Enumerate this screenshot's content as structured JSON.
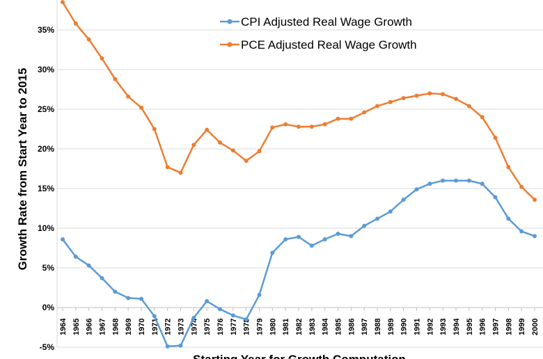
{
  "chart_data": {
    "type": "line",
    "title": "",
    "xlabel": "Starting Year for Growth Computation",
    "ylabel": "Growth Rate from Start Year to 2015",
    "ylim": [
      -5,
      38
    ],
    "y_ticks": [
      "-5%",
      "0%",
      "5%",
      "10%",
      "15%",
      "20%",
      "25%",
      "30%",
      "35%"
    ],
    "y_tick_values": [
      -5,
      0,
      5,
      10,
      15,
      20,
      25,
      30,
      35
    ],
    "grid": "horizontal",
    "legend_position": "top",
    "categories": [
      "1964",
      "1965",
      "1966",
      "1967",
      "1968",
      "1969",
      "1970",
      "1971",
      "1972",
      "1973",
      "1974",
      "1975",
      "1976",
      "1977",
      "1978",
      "1979",
      "1980",
      "1981",
      "1982",
      "1983",
      "1984",
      "1985",
      "1986",
      "1987",
      "1988",
      "1989",
      "1990",
      "1991",
      "1992",
      "1993",
      "1994",
      "1995",
      "1996",
      "1997",
      "1998",
      "1999",
      "2000"
    ],
    "series": [
      {
        "name": "CPI Adjusted Real Wage Growth",
        "color": "#5b9bd5",
        "values": [
          8.6,
          6.4,
          5.3,
          3.7,
          2.0,
          1.2,
          1.1,
          -1.1,
          -4.9,
          -4.8,
          -1.3,
          0.8,
          -0.2,
          -1.0,
          -1.5,
          1.6,
          6.9,
          8.6,
          8.9,
          7.8,
          8.6,
          9.3,
          9.0,
          10.3,
          11.2,
          12.1,
          13.6,
          14.9,
          15.6,
          16.0,
          16.0,
          16.0,
          15.6,
          13.9,
          11.2,
          9.6,
          9.0
        ]
      },
      {
        "name": "PCE Adjusted Real Wage Growth",
        "color": "#ed7d31",
        "values": [
          38.5,
          35.8,
          33.8,
          31.4,
          28.8,
          26.6,
          25.2,
          22.5,
          17.7,
          17.0,
          20.5,
          22.4,
          20.8,
          19.8,
          18.5,
          19.7,
          22.7,
          23.1,
          22.8,
          22.8,
          23.1,
          23.8,
          23.8,
          24.6,
          25.4,
          25.9,
          26.4,
          26.7,
          27.0,
          26.9,
          26.3,
          25.4,
          24.0,
          21.4,
          17.7,
          15.2,
          13.6
        ]
      }
    ]
  }
}
